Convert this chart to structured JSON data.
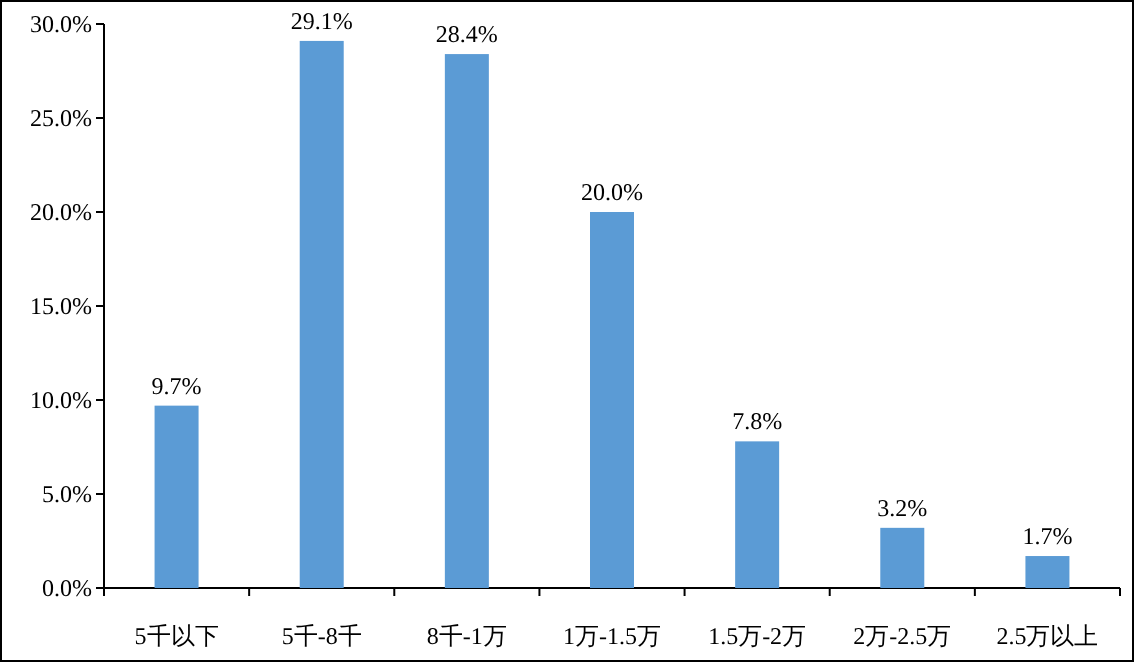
{
  "chart_data": {
    "type": "bar",
    "categories": [
      "5千以下",
      "5千-8千",
      "8千-1万",
      "1万-1.5万",
      "1.5万-2万",
      "2万-2.5万",
      "2.5万以上"
    ],
    "values": [
      9.7,
      29.1,
      28.4,
      20.0,
      7.8,
      3.2,
      1.7
    ],
    "value_labels": [
      "9.7%",
      "29.1%",
      "28.4%",
      "20.0%",
      "7.8%",
      "3.2%",
      "1.7%"
    ],
    "color": "#5b9bd5",
    "ylim": [
      0,
      30
    ],
    "yticks": [
      {
        "value": 0,
        "label": "0.0%"
      },
      {
        "value": 5,
        "label": "5.0%"
      },
      {
        "value": 10,
        "label": "10.0%"
      },
      {
        "value": 15,
        "label": "15.0%"
      },
      {
        "value": 20,
        "label": "20.0%"
      },
      {
        "value": 25,
        "label": "25.0%"
      },
      {
        "value": 30,
        "label": "30.0%"
      }
    ]
  }
}
